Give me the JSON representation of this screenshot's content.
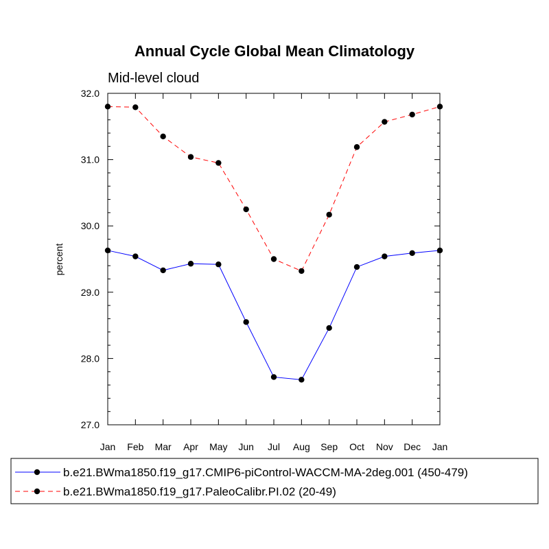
{
  "chart_data": {
    "type": "line",
    "title": "Annual Cycle Global Mean Climatology",
    "subtitle": "Mid-level cloud",
    "xlabel": "",
    "ylabel": "percent",
    "categories": [
      "Jan",
      "Feb",
      "Mar",
      "Apr",
      "May",
      "Jun",
      "Jul",
      "Aug",
      "Sep",
      "Oct",
      "Nov",
      "Dec",
      "Jan"
    ],
    "ylim": [
      27.0,
      32.0
    ],
    "yticks": [
      "27.0",
      "28.0",
      "29.0",
      "30.0",
      "31.0",
      "32.0"
    ],
    "grid": false,
    "legend_position": "bottom",
    "series": [
      {
        "name": "b.e21.BWma1850.f19_g17.CMIP6-piControl-WACCM-MA-2deg.001 (450-479)",
        "color": "#0000ff",
        "style": "solid",
        "marker": "circle",
        "values": [
          29.63,
          29.54,
          29.33,
          29.43,
          29.42,
          28.55,
          27.72,
          27.68,
          28.46,
          29.38,
          29.54,
          29.59,
          29.63
        ]
      },
      {
        "name": "b.e21.BWma1850.f19_g17.PaleoCalibr.PI.02 (20-49)",
        "color": "#ff0000",
        "style": "dashed",
        "marker": "circle",
        "values": [
          31.8,
          31.79,
          31.35,
          31.04,
          30.95,
          30.25,
          29.5,
          29.32,
          30.17,
          31.19,
          31.57,
          31.68,
          31.8
        ]
      }
    ]
  }
}
